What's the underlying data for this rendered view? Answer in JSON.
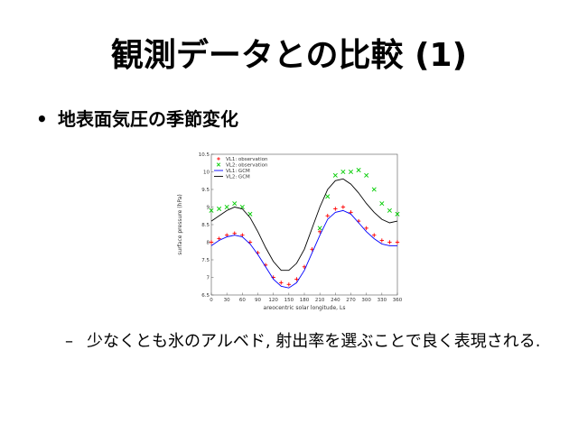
{
  "slide": {
    "title": "観測データとの比較 (1)",
    "bullet": "地表面気圧の季節変化",
    "bullet_marker": "•",
    "sub_dash": "–",
    "sub_text": "少なくとも氷のアルベド, 射出率を選ぶことで良く表現される."
  },
  "chart_data": {
    "type": "scatter",
    "xlabel": "areocentric solar longitude, Ls",
    "ylabel": "surface pressure (hPa)",
    "xlim": [
      0,
      360
    ],
    "ylim": [
      6.5,
      10.5
    ],
    "xticks": [
      "0",
      "30",
      "60",
      "90",
      "120",
      "150",
      "180",
      "210",
      "240",
      "270",
      "300",
      "330",
      "360"
    ],
    "yticks": [
      "6.5",
      "7",
      "7.5",
      "8",
      "8.5",
      "9",
      "9.5",
      "10",
      "10.5"
    ],
    "legend_position": "top-left",
    "series": [
      {
        "name": "VL1: observation",
        "marker": "+",
        "color": "#ff0000",
        "x": [
          0,
          15,
          30,
          45,
          60,
          75,
          90,
          105,
          120,
          135,
          150,
          165,
          180,
          195,
          210,
          225,
          240,
          255,
          270,
          285,
          300,
          315,
          330,
          345,
          360
        ],
        "y": [
          8.0,
          8.1,
          8.2,
          8.25,
          8.2,
          8.0,
          7.7,
          7.35,
          7.0,
          6.85,
          6.8,
          6.95,
          7.3,
          7.8,
          8.3,
          8.75,
          8.95,
          9.0,
          8.85,
          8.6,
          8.4,
          8.2,
          8.05,
          8.0,
          8.0
        ]
      },
      {
        "name": "VL2: observation",
        "marker": "x",
        "color": "#00cc00",
        "x": [
          0,
          15,
          30,
          45,
          60,
          75,
          210,
          225,
          240,
          255,
          270,
          285,
          300,
          315,
          330,
          345,
          360
        ],
        "y": [
          8.9,
          8.95,
          9.0,
          9.1,
          9.0,
          8.8,
          8.4,
          9.3,
          9.9,
          10.0,
          10.0,
          10.05,
          9.9,
          9.5,
          9.1,
          8.9,
          8.8
        ]
      },
      {
        "name": "VL1: GCM",
        "marker": "line",
        "color": "#0000ff",
        "x": [
          0,
          15,
          30,
          45,
          60,
          75,
          90,
          105,
          120,
          135,
          150,
          165,
          180,
          195,
          210,
          225,
          240,
          255,
          270,
          285,
          300,
          315,
          330,
          345,
          360
        ],
        "y": [
          7.9,
          8.05,
          8.15,
          8.2,
          8.15,
          7.95,
          7.65,
          7.3,
          6.95,
          6.75,
          6.7,
          6.85,
          7.2,
          7.7,
          8.2,
          8.65,
          8.85,
          8.9,
          8.8,
          8.55,
          8.3,
          8.1,
          7.95,
          7.9,
          7.9
        ]
      },
      {
        "name": "VL2: GCM",
        "marker": "line",
        "color": "#000000",
        "x": [
          0,
          15,
          30,
          45,
          60,
          75,
          90,
          105,
          120,
          135,
          150,
          165,
          180,
          195,
          210,
          225,
          240,
          255,
          270,
          285,
          300,
          315,
          330,
          345,
          360
        ],
        "y": [
          8.6,
          8.75,
          8.9,
          9.0,
          8.95,
          8.7,
          8.3,
          7.85,
          7.45,
          7.2,
          7.2,
          7.4,
          7.8,
          8.4,
          9.0,
          9.5,
          9.75,
          9.8,
          9.65,
          9.4,
          9.1,
          8.85,
          8.65,
          8.55,
          8.6
        ]
      }
    ]
  }
}
